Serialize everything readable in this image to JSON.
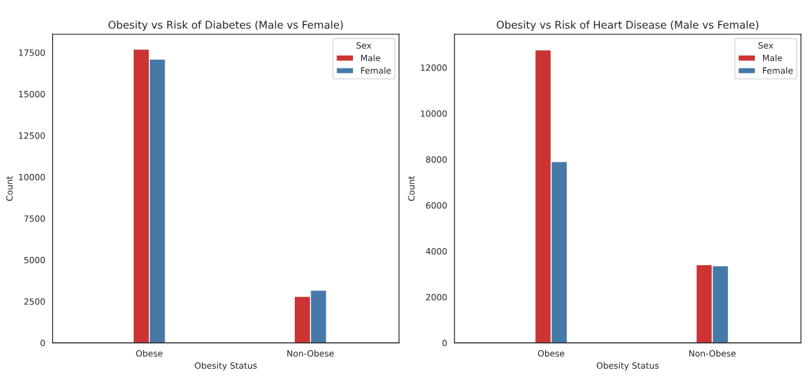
{
  "chart_data": [
    {
      "type": "bar",
      "title": "Obesity vs Risk of Diabetes (Male vs Female)",
      "xlabel": "Obesity Status",
      "ylabel": "Count",
      "legend_title": "Sex",
      "legend": "top right",
      "categories": [
        "Obese",
        "Non-Obese"
      ],
      "series": [
        {
          "name": "Male",
          "color": "#cc3333",
          "values": [
            17700,
            2800
          ]
        },
        {
          "name": "Female",
          "color": "#4679a8",
          "values": [
            17100,
            3170
          ]
        }
      ],
      "ylim": [
        0,
        18600
      ],
      "yticks": [
        0,
        2500,
        5000,
        7500,
        10000,
        12500,
        15000,
        17500
      ]
    },
    {
      "type": "bar",
      "title": "Obesity vs Risk of Heart Disease (Male vs Female)",
      "xlabel": "Obesity Status",
      "ylabel": "Count",
      "legend_title": "Sex",
      "legend": "top right",
      "categories": [
        "Obese",
        "Non-Obese"
      ],
      "series": [
        {
          "name": "Male",
          "color": "#cc3333",
          "values": [
            12770,
            3410
          ]
        },
        {
          "name": "Female",
          "color": "#4679a8",
          "values": [
            7900,
            3360
          ]
        }
      ],
      "ylim": [
        0,
        13450
      ],
      "yticks": [
        0,
        2000,
        4000,
        6000,
        8000,
        10000,
        12000
      ]
    }
  ]
}
